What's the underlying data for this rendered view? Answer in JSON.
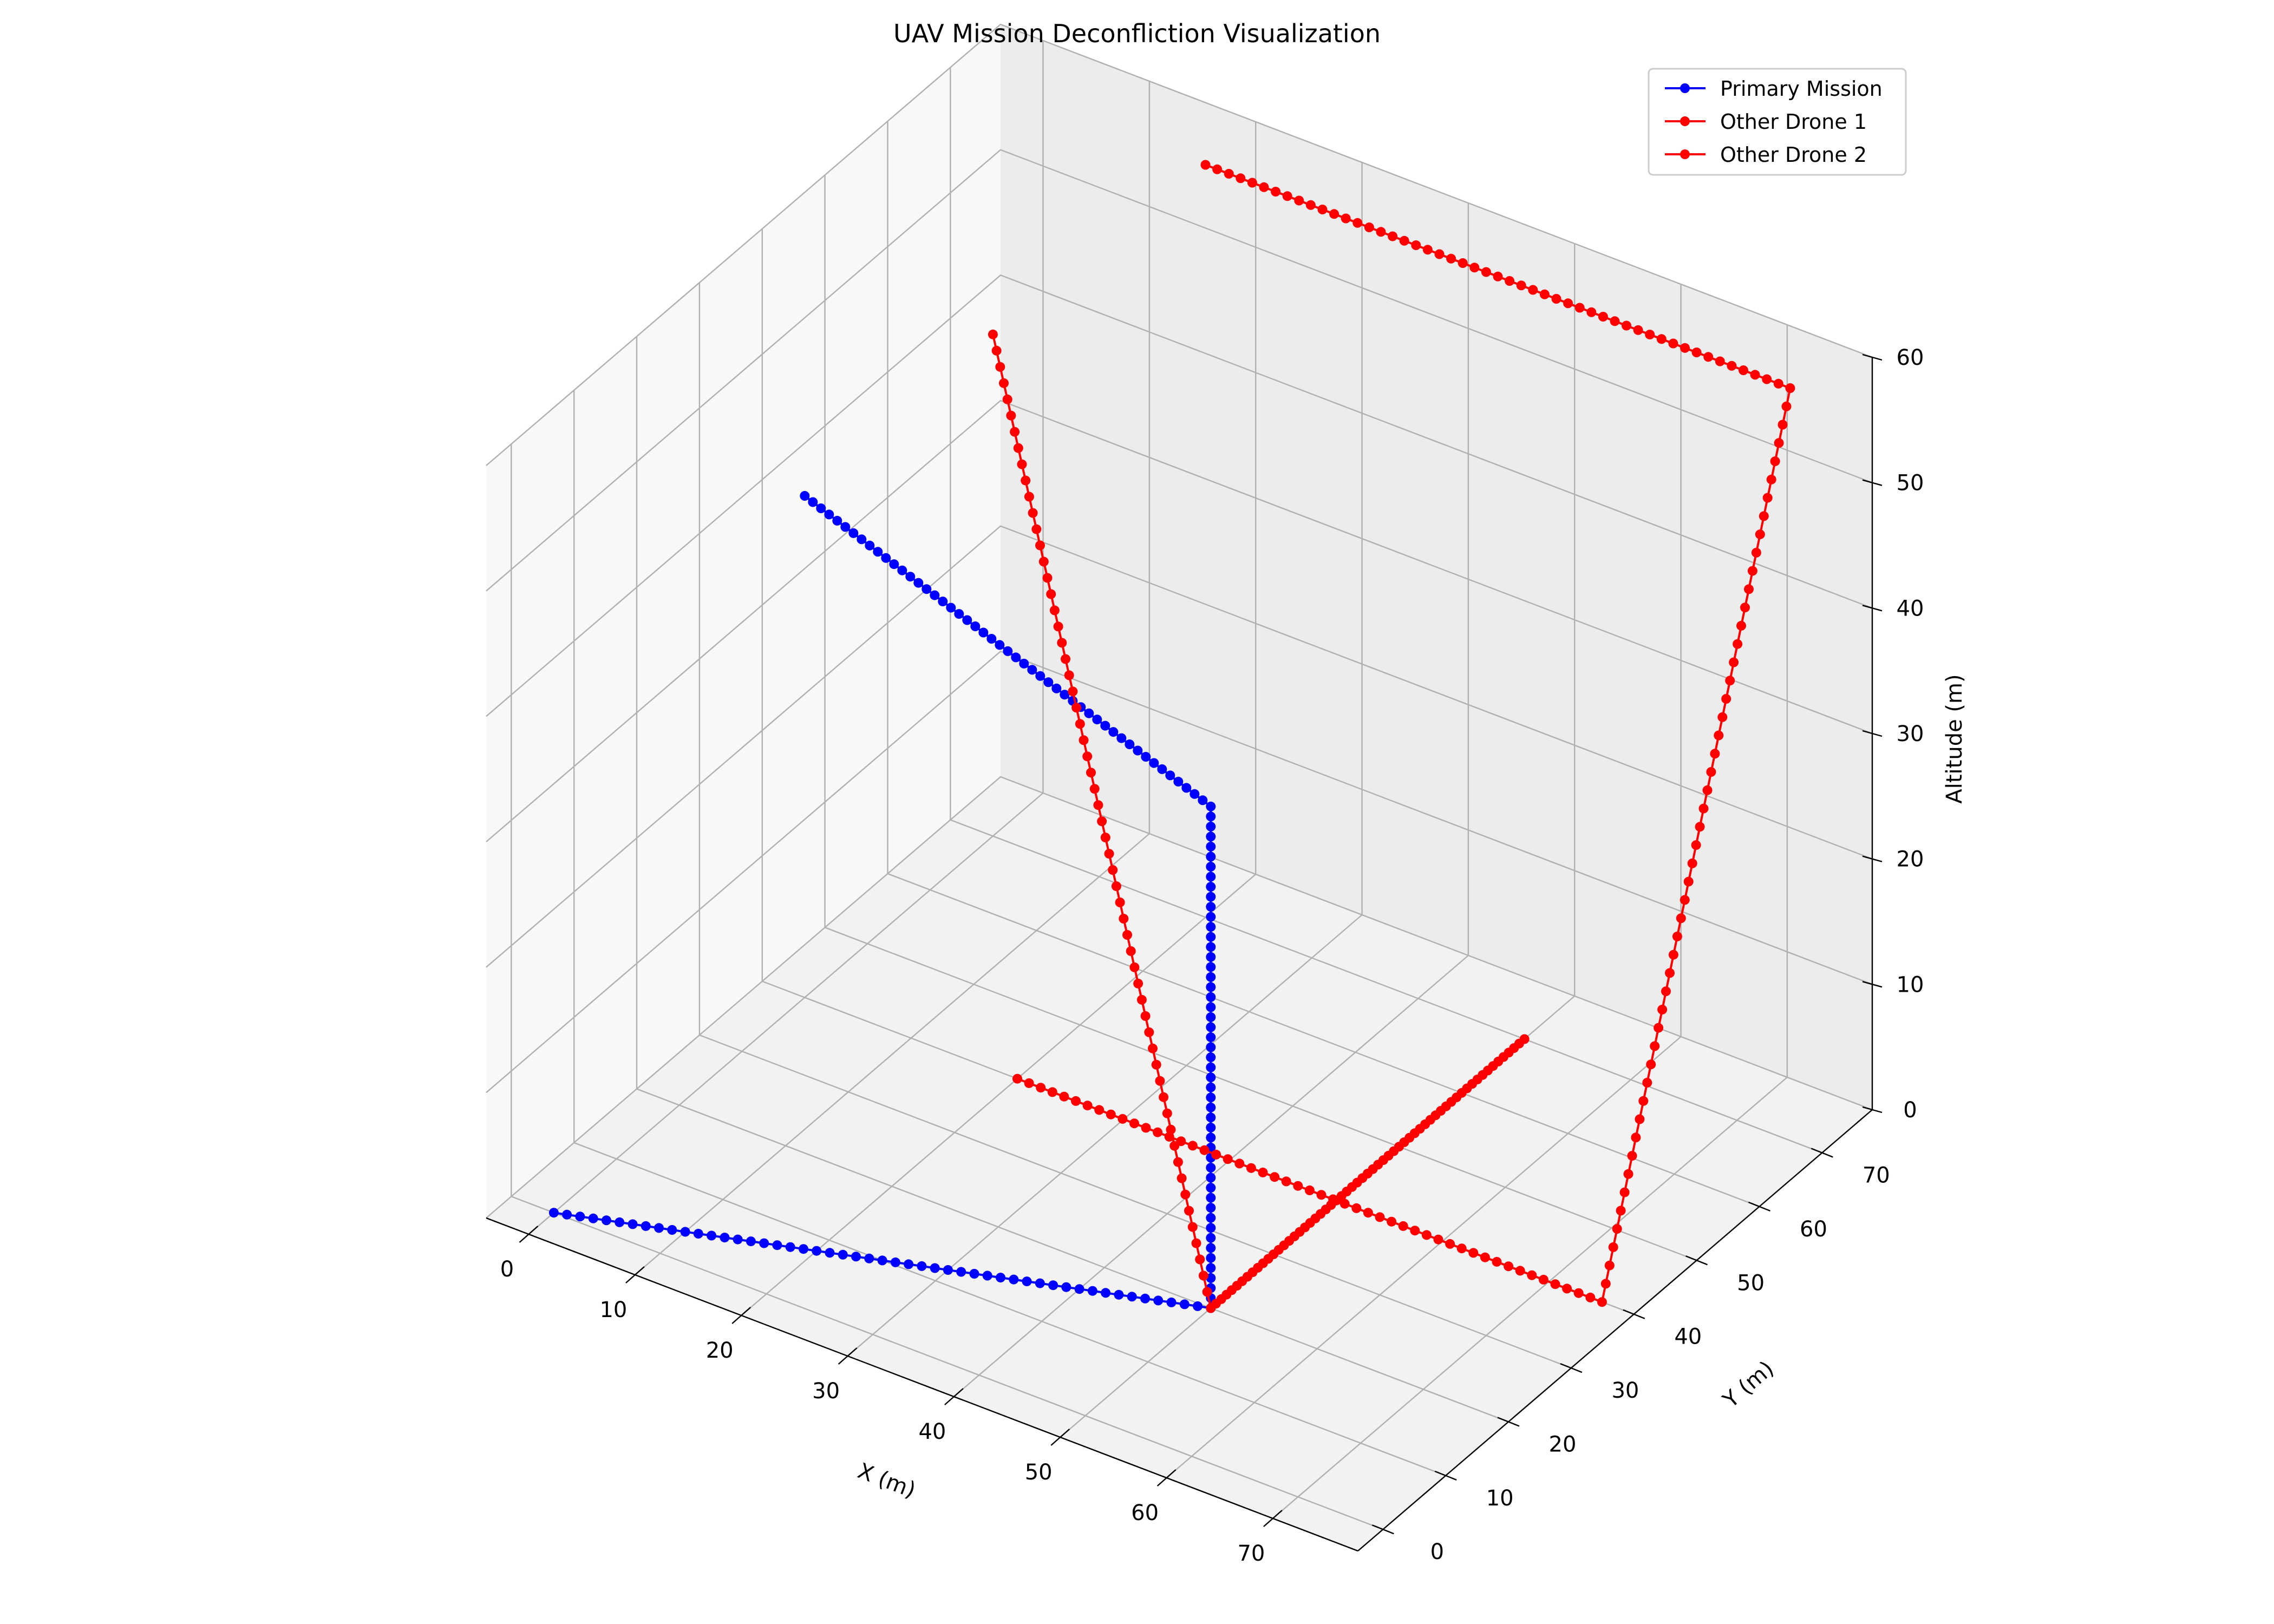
{
  "chart_data": {
    "type": "line3d",
    "title": "UAV Mission Deconfliction Visualization",
    "xlabel": "X (m)",
    "ylabel": "Y (m)",
    "zlabel": "Altitude (m)",
    "xlim": [
      -4,
      78
    ],
    "ylim": [
      -4,
      78
    ],
    "zlim": [
      0,
      60
    ],
    "x_ticks": [
      0,
      10,
      20,
      30,
      40,
      50,
      60,
      70
    ],
    "y_ticks": [
      0,
      10,
      20,
      30,
      40,
      50,
      60,
      70
    ],
    "z_ticks": [
      0,
      10,
      20,
      30,
      40,
      50,
      60
    ],
    "grid": true,
    "legend_position": "top-right",
    "series": [
      {
        "name": "Primary Mission",
        "color": "#0000ff",
        "waypoints": [
          [
            0,
            0,
            0
          ],
          [
            50,
            20,
            0
          ],
          [
            50,
            20,
            40
          ],
          [
            0,
            40,
            40
          ]
        ],
        "points_per_segment": [
          50,
          50,
          50
        ]
      },
      {
        "name": "Other Drone 1",
        "color": "#ff0000",
        "waypoints": [
          [
            20,
            40,
            0
          ],
          [
            75,
            40,
            0
          ],
          [
            75,
            70,
            60
          ],
          [
            20,
            70,
            60
          ]
        ],
        "points_per_segment": [
          50,
          50,
          50
        ]
      },
      {
        "name": "Other Drone 2",
        "color": "#ff0000",
        "waypoints": [
          [
            0,
            70,
            40
          ],
          [
            50,
            20,
            0
          ],
          [
            50,
            70,
            0
          ]
        ],
        "points_per_segment": [
          60,
          60
        ]
      }
    ]
  }
}
